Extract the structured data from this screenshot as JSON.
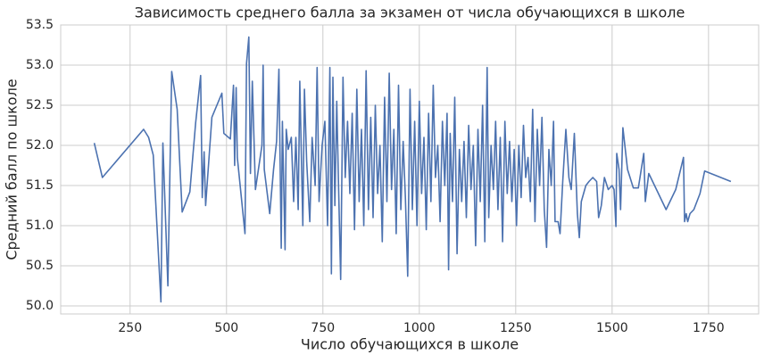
{
  "chart_data": {
    "type": "line",
    "title": "Зависимость среднего балла за экзамен от числа обучающихся в школе",
    "x_label": "Число обучающихся в школе",
    "y_label": "Средний балл по школе",
    "xlim": [
      70,
      1880
    ],
    "ylim": [
      49.9,
      53.5
    ],
    "xticks": [
      250,
      500,
      750,
      1000,
      1250,
      1500,
      1750
    ],
    "yticks": [
      {
        "value": 50.0,
        "label": "50.0"
      },
      50.5,
      {
        "value": 51.0,
        "label": "51.0"
      },
      51.5,
      {
        "value": 52.0,
        "label": "52.0"
      },
      52.5,
      {
        "value": 53.0,
        "label": "53.0"
      },
      53.5
    ],
    "grid": true,
    "series": [
      {
        "color": "#4c72b0",
        "x": [
          157,
          178,
          285,
          298,
          310,
          330,
          335,
          348,
          358,
          372,
          385,
          405,
          420,
          433,
          437,
          442,
          446,
          462,
          488,
          493,
          510,
          518,
          521,
          525,
          528,
          548,
          552,
          558,
          562,
          567,
          575,
          592,
          595,
          598,
          612,
          622,
          630,
          636,
          642,
          645,
          652,
          655,
          660,
          668,
          674,
          680,
          686,
          690,
          698,
          702,
          708,
          716,
          722,
          730,
          735,
          740,
          748,
          755,
          762,
          768,
          772,
          776,
          781,
          786,
          790,
          796,
          802,
          808,
          814,
          820,
          826,
          832,
          838,
          844,
          850,
          856,
          862,
          868,
          874,
          880,
          886,
          892,
          898,
          904,
          910,
          916,
          922,
          928,
          934,
          940,
          946,
          952,
          958,
          964,
          970,
          976,
          982,
          988,
          994,
          1000,
          1006,
          1012,
          1018,
          1024,
          1030,
          1036,
          1042,
          1048,
          1054,
          1060,
          1066,
          1072,
          1076,
          1080,
          1086,
          1092,
          1098,
          1104,
          1110,
          1116,
          1122,
          1128,
          1134,
          1140,
          1146,
          1152,
          1158,
          1164,
          1170,
          1176,
          1180,
          1186,
          1192,
          1198,
          1204,
          1210,
          1216,
          1222,
          1228,
          1234,
          1240,
          1246,
          1252,
          1258,
          1264,
          1270,
          1276,
          1282,
          1288,
          1294,
          1300,
          1306,
          1312,
          1318,
          1324,
          1330,
          1336,
          1342,
          1348,
          1352,
          1360,
          1365,
          1372,
          1380,
          1388,
          1394,
          1402,
          1410,
          1415,
          1420,
          1432,
          1440,
          1450,
          1460,
          1465,
          1472,
          1480,
          1490,
          1500,
          1505,
          1510,
          1512,
          1518,
          1522,
          1528,
          1540,
          1555,
          1568,
          1582,
          1586,
          1595,
          1620,
          1640,
          1665,
          1685,
          1688,
          1692,
          1696,
          1702,
          1712,
          1728,
          1740,
          1808
        ],
        "values": [
          52.03,
          51.6,
          52.2,
          52.1,
          51.88,
          50.05,
          52.03,
          50.25,
          52.92,
          52.45,
          51.17,
          51.42,
          52.28,
          52.87,
          51.35,
          51.92,
          51.25,
          52.35,
          52.65,
          52.15,
          52.08,
          52.75,
          51.75,
          52.72,
          51.85,
          50.9,
          53.02,
          53.35,
          51.65,
          52.8,
          51.45,
          52.0,
          53.0,
          51.7,
          51.15,
          51.7,
          52.05,
          52.95,
          50.72,
          52.3,
          50.7,
          52.2,
          51.95,
          52.1,
          51.3,
          52.1,
          51.2,
          52.8,
          51.0,
          52.7,
          51.8,
          51.05,
          52.1,
          51.5,
          52.97,
          51.3,
          52.0,
          52.3,
          51.0,
          52.97,
          50.4,
          52.85,
          51.25,
          52.55,
          51.6,
          50.33,
          52.85,
          51.6,
          52.3,
          51.4,
          52.4,
          50.95,
          52.7,
          51.3,
          52.2,
          51.0,
          52.93,
          51.2,
          52.35,
          51.1,
          52.5,
          51.4,
          52.0,
          50.8,
          52.6,
          51.3,
          52.9,
          51.45,
          52.2,
          50.9,
          52.75,
          51.2,
          52.05,
          51.35,
          50.37,
          52.7,
          51.2,
          52.3,
          51.0,
          52.55,
          51.4,
          52.1,
          50.95,
          52.4,
          51.3,
          52.75,
          51.6,
          52.0,
          51.05,
          52.3,
          51.5,
          52.4,
          50.45,
          52.15,
          51.3,
          52.6,
          50.65,
          51.95,
          51.3,
          52.05,
          51.1,
          52.25,
          51.45,
          52.0,
          50.75,
          52.2,
          51.3,
          52.5,
          50.8,
          52.97,
          51.1,
          52.0,
          51.45,
          52.3,
          51.2,
          52.1,
          50.8,
          52.3,
          51.4,
          52.05,
          51.3,
          51.95,
          51.0,
          52.0,
          51.35,
          52.25,
          51.6,
          51.85,
          51.3,
          52.45,
          51.05,
          52.2,
          51.5,
          52.35,
          51.2,
          50.73,
          51.95,
          51.5,
          52.3,
          51.05,
          51.05,
          50.9,
          51.55,
          52.2,
          51.6,
          51.45,
          52.15,
          51.15,
          50.85,
          51.3,
          51.5,
          51.55,
          51.6,
          51.55,
          51.1,
          51.25,
          51.6,
          51.45,
          51.5,
          51.45,
          50.99,
          51.9,
          51.7,
          51.2,
          52.22,
          51.7,
          51.47,
          51.47,
          51.9,
          51.3,
          51.65,
          51.4,
          51.2,
          51.45,
          51.85,
          51.05,
          51.15,
          51.05,
          51.15,
          51.2,
          51.4,
          51.68,
          51.55
        ]
      }
    ]
  }
}
